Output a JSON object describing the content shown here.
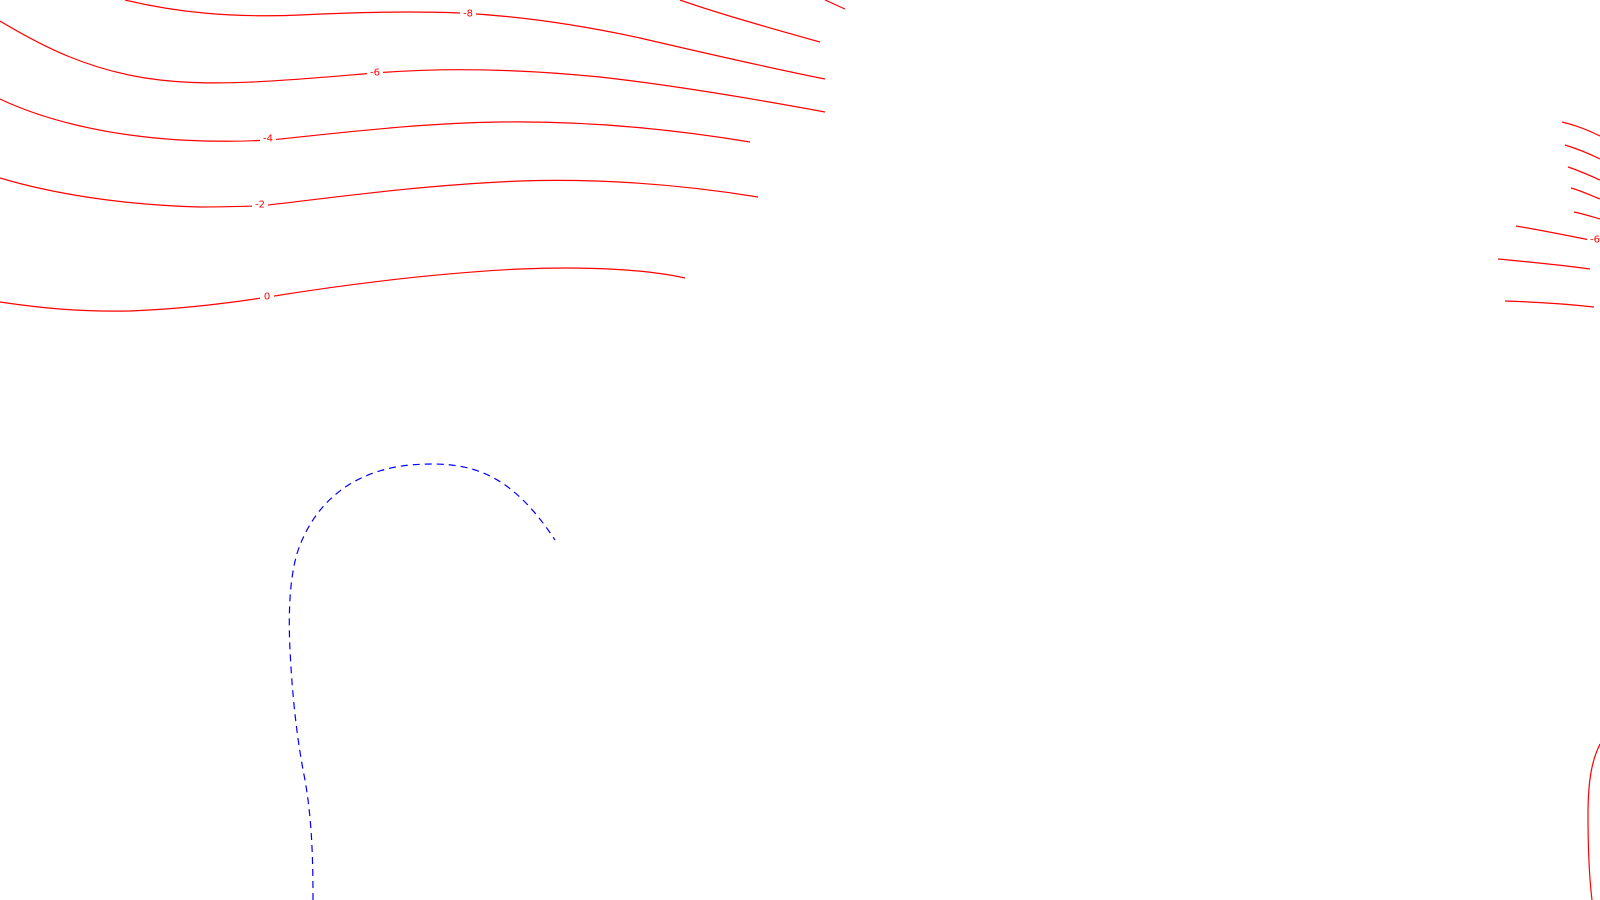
{
  "colors": {
    "background": "#ffffff",
    "contour": "#ff0000",
    "dashed_contour": "#0000ff"
  },
  "contour_labels": {
    "minus8": "-8",
    "minus6": "-6",
    "minus4": "-4",
    "minus2": "-2",
    "zero": "0",
    "right_minus6": "-6"
  }
}
